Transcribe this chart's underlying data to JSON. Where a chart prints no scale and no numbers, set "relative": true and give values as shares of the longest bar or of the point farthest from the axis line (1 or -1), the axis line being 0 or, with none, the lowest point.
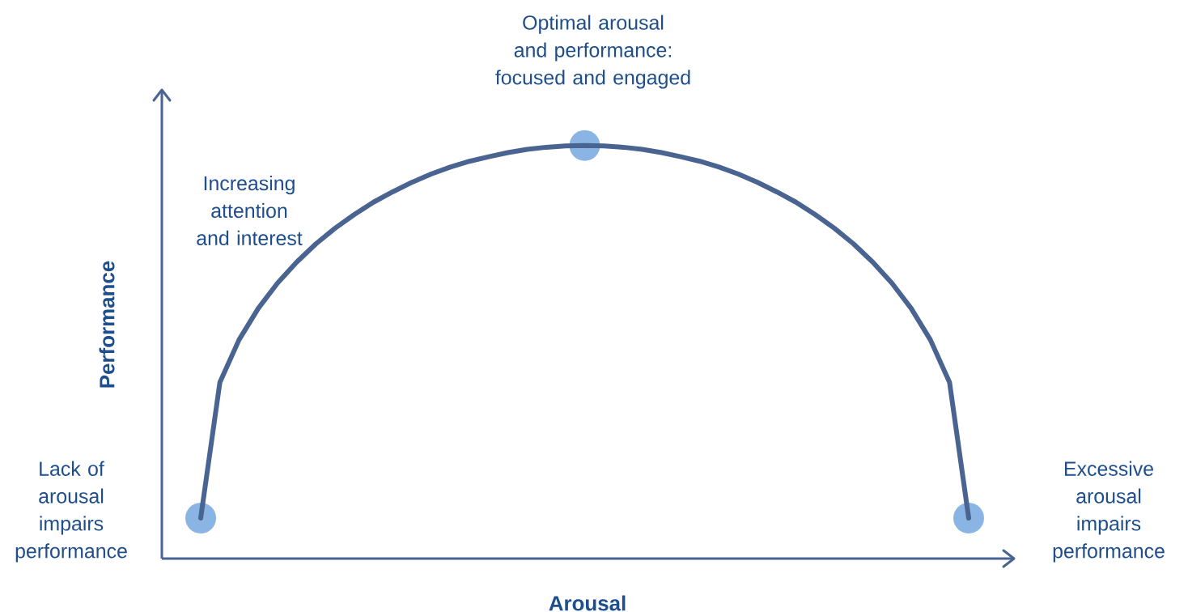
{
  "chart_data": {
    "type": "line",
    "relative": true,
    "xlabel": "Arousal",
    "ylabel": "Performance",
    "tick_labels": false,
    "color": "#4a6491",
    "marker": "none",
    "line_style": "solid",
    "categories": [
      null,
      null,
      null,
      null,
      null,
      null,
      null,
      null,
      null,
      null,
      null,
      null,
      null,
      null,
      null,
      null,
      null,
      null,
      null,
      null,
      null,
      null,
      null,
      null,
      null,
      null,
      null,
      null,
      null,
      null,
      null,
      null,
      null,
      null,
      null,
      null,
      null,
      null,
      null,
      null,
      null
    ],
    "values": [
      0.098,
      0.427,
      0.53,
      0.606,
      0.667,
      0.718,
      0.762,
      0.8,
      0.833,
      0.863,
      0.888,
      0.911,
      0.931,
      0.948,
      0.962,
      0.973,
      0.983,
      0.991,
      0.996,
      0.999,
      1,
      0.999,
      0.996,
      0.991,
      0.983,
      0.973,
      0.962,
      0.948,
      0.931,
      0.911,
      0.888,
      0.863,
      0.833,
      0.8,
      0.762,
      0.718,
      0.667,
      0.606,
      0.53,
      0.427,
      0.098
    ],
    "annotations": [
      "Lack of arousal impairs performance",
      "Increasing attention and interest",
      "Optimal arousal and performance: focused and engaged",
      "Excessive arousal impairs performance"
    ]
  }
}
